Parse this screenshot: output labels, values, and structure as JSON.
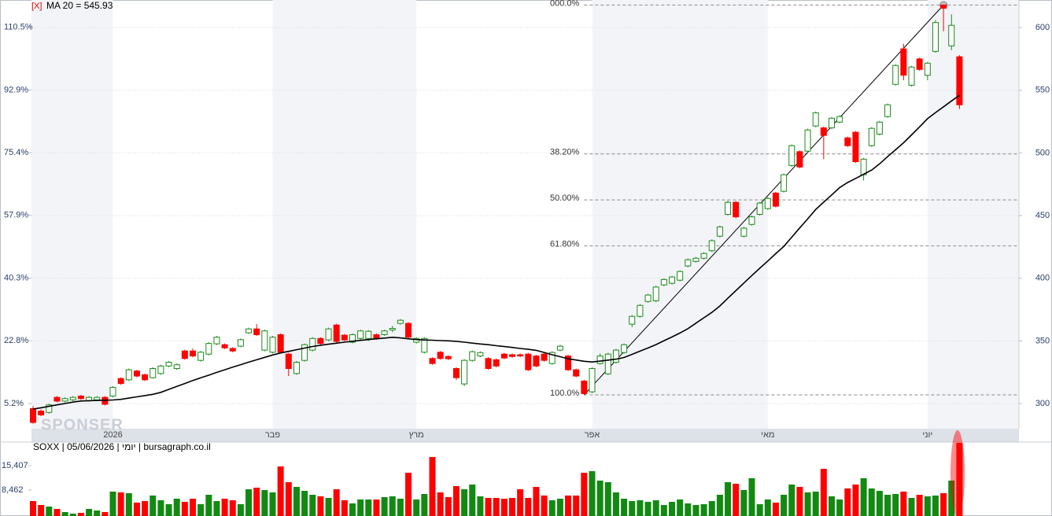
{
  "chart_data": [
    {
      "type": "candlestick",
      "close_button": "[X]",
      "watermark": "SPONSER",
      "categories": [
        null,
        null,
        null,
        null,
        null,
        null,
        null,
        null,
        null,
        null,
        "2026",
        null,
        null,
        null,
        null,
        null,
        null,
        null,
        null,
        null,
        null,
        null,
        null,
        null,
        null,
        null,
        null,
        null,
        null,
        null,
        "פבר",
        null,
        null,
        null,
        null,
        null,
        null,
        null,
        null,
        null,
        null,
        null,
        null,
        null,
        null,
        null,
        null,
        null,
        "מרץ",
        null,
        null,
        null,
        null,
        null,
        null,
        null,
        null,
        null,
        null,
        null,
        null,
        null,
        null,
        null,
        null,
        null,
        null,
        null,
        null,
        null,
        "אפר",
        null,
        null,
        null,
        null,
        null,
        null,
        null,
        null,
        null,
        null,
        null,
        null,
        null,
        null,
        null,
        null,
        null,
        null,
        null,
        null,
        null,
        "מאי",
        null,
        null,
        null,
        null,
        null,
        null,
        null,
        null,
        null,
        null,
        null,
        null,
        null,
        null,
        null,
        null,
        null,
        null,
        null,
        "יוני",
        null,
        null,
        null,
        null
      ],
      "open": [
        296,
        294,
        293,
        305,
        302,
        303,
        306,
        302.5,
        303,
        305,
        306,
        320,
        319,
        326,
        323,
        320.7,
        324,
        330,
        328,
        342,
        342,
        334.5,
        339.5,
        347.7,
        347,
        344,
        345.8,
        356.5,
        359.6,
        342.7,
        341,
        355,
        339.5,
        324,
        334.5,
        342.7,
        352,
        350.8,
        362.7,
        354.6,
        349,
        352,
        352,
        355,
        355,
        358.8,
        364,
        364,
        349,
        341,
        336,
        341,
        337.6,
        328,
        315.7,
        334.5,
        338,
        336,
        335,
        339.5,
        339,
        339,
        339.5,
        338,
        339.5,
        332,
        342.7,
        338,
        327,
        318,
        309.4,
        332,
        323.8,
        333,
        340.8,
        363.4,
        369.6,
        381.5,
        382,
        394.7,
        396,
        398.5,
        409.8,
        413.5,
        416,
        422,
        433.6,
        451,
        460.6,
        433.6,
        443,
        451,
        455.6,
        468,
        469.4,
        490,
        501,
        501.4,
        521.5,
        520,
        520,
        524.6,
        512,
        516.5,
        482.6,
        505.8,
        515,
        529,
        554.7,
        583,
        554,
        575,
        562,
        581,
        618,
        585.4,
        576.7
      ],
      "high": [
        298,
        295.5,
        300,
        306,
        305,
        306,
        307,
        306,
        306,
        306,
        314,
        321,
        328,
        327,
        324,
        329,
        331,
        334,
        332,
        343,
        344,
        342,
        349,
        354,
        348,
        345,
        352,
        360.6,
        363.4,
        359,
        354,
        356,
        340.5,
        334,
        348,
        353,
        353,
        360.6,
        363.7,
        355.6,
        356,
        359,
        358.7,
        356,
        359,
        362,
        367.5,
        365,
        353,
        353,
        337,
        342,
        338.6,
        329,
        335.5,
        342.4,
        341.7,
        337,
        336,
        340.5,
        340,
        340,
        340.5,
        339,
        340.5,
        341.8,
        347,
        339,
        328,
        319,
        329,
        340,
        340.5,
        343.7,
        348,
        370.6,
        379.4,
        387.6,
        394,
        400,
        402,
        406.4,
        415.8,
        417,
        420.8,
        431,
        442,
        462,
        461.6,
        441,
        450,
        461,
        464.7,
        469,
        483.6,
        506.8,
        502,
        519.3,
        533,
        521,
        528.7,
        530,
        513,
        517.5,
        496,
        520.6,
        525.6,
        539.4,
        570.8,
        587,
        569.5,
        576,
        572.6,
        606,
        618,
        610.5,
        578
      ],
      "low": [
        284,
        290,
        292,
        301,
        301,
        302,
        303,
        301.5,
        302,
        298.5,
        305,
        315,
        318,
        321,
        318,
        320,
        323,
        329,
        327,
        335,
        337,
        333.5,
        338.5,
        346.7,
        343.5,
        341,
        345,
        355.5,
        354,
        341.7,
        340,
        340,
        322,
        323,
        333.5,
        341.7,
        347,
        349.8,
        348.6,
        349.8,
        348,
        351,
        350,
        351,
        354,
        357,
        363,
        352,
        348,
        340,
        331,
        335,
        334.8,
        319,
        314,
        333.5,
        337,
        327,
        329,
        335.4,
        336.6,
        337,
        326,
        329,
        333.5,
        331,
        341.7,
        326,
        321,
        307,
        308.4,
        331,
        322.8,
        332,
        339.8,
        361,
        368.6,
        380.5,
        381,
        393.7,
        395,
        397.5,
        408.8,
        412.5,
        415,
        421,
        432.6,
        450,
        448,
        432.6,
        442,
        450,
        454.6,
        456.5,
        468.4,
        489,
        487.8,
        500.4,
        520.5,
        495,
        519,
        523.6,
        504.8,
        492,
        478,
        504.8,
        514,
        528,
        553.7,
        558,
        553,
        565.6,
        558,
        580,
        597,
        582,
        535
      ],
      "close": [
        285,
        291,
        299,
        302,
        304,
        305,
        304,
        305,
        305,
        299.5,
        313,
        316,
        327,
        322,
        319,
        328,
        330,
        333,
        331,
        336,
        338,
        341,
        348,
        353,
        344.5,
        342,
        351,
        359.6,
        355,
        358,
        353,
        341,
        328,
        333,
        347,
        352,
        348,
        359.6,
        349.6,
        350.8,
        355,
        358,
        357.7,
        352,
        358,
        360,
        366.5,
        353,
        352,
        352,
        332,
        336,
        335.8,
        320.7,
        334.5,
        341.4,
        340.7,
        328,
        330,
        336.4,
        337.6,
        338,
        327,
        330,
        334.5,
        340.8,
        345.8,
        327,
        322,
        308,
        328,
        338,
        339.5,
        342.7,
        347,
        369.6,
        378.4,
        386.6,
        393,
        399,
        401,
        405.4,
        414.8,
        416,
        419.8,
        430,
        441,
        460.6,
        449,
        440,
        449,
        460,
        463.7,
        457.5,
        482.6,
        505.8,
        488.8,
        518.3,
        532,
        514,
        527.7,
        529,
        505.8,
        493,
        495,
        519.6,
        524.6,
        538.4,
        569.8,
        562,
        568.5,
        566.6,
        571.6,
        604,
        615.5,
        601.8,
        538.4
      ],
      "up_color": "#1a8a1a",
      "down_color": "#ff0000",
      "series": [
        {
          "name": "MA 20 = 545.93",
          "color": "#000000",
          "values": [
            295.6,
            296.7,
            297.8,
            299.0,
            300.1,
            301.2,
            302.1,
            302.3,
            302.5,
            302.7,
            302.9,
            303.4,
            304.4,
            305.4,
            306.4,
            307.4,
            309.0,
            311.4,
            313.7,
            316.0,
            318.4,
            320.6,
            322.7,
            324.9,
            327.0,
            329.1,
            331.1,
            333.1,
            335.0,
            336.9,
            338.8,
            340.4,
            341.7,
            343.0,
            344.3,
            345.6,
            346.6,
            347.4,
            348.2,
            349.0,
            349.8,
            350.5,
            351.1,
            351.7,
            352.3,
            352.9,
            352.4,
            351.7,
            351.1,
            350.8,
            350.6,
            350.3,
            350.1,
            349.7,
            349.0,
            348.3,
            347.6,
            347.0,
            346.2,
            345.5,
            344.8,
            344.0,
            343.3,
            342.5,
            340.8,
            339.0,
            337.4,
            335.8,
            334.8,
            333.8,
            333.2,
            333.9,
            334.7,
            335.5,
            336.8,
            339.3,
            341.9,
            344.4,
            347.1,
            350.2,
            353.2,
            356.3,
            359.8,
            364.2,
            368.5,
            372.8,
            377.9,
            384.1,
            390.1,
            396.2,
            402.2,
            408.0,
            413.8,
            419.7,
            425.4,
            432.8,
            440.2,
            447.5,
            454.9,
            460.7,
            466.5,
            472.4,
            476.4,
            479.7,
            483.0,
            486.3,
            491.3,
            497.0,
            502.5,
            508.1,
            514.4,
            520.8,
            527.3,
            532.2,
            536.8,
            541.5,
            545.93
          ]
        }
      ],
      "fibonacci": {
        "color": "#8a8a8a",
        "levels": [
          {
            "value": 618,
            "label": "000.0%"
          },
          {
            "value": 499.2,
            "label": "38.20%"
          },
          {
            "value": 462.5,
            "label": "50.00%"
          },
          {
            "value": 425.8,
            "label": "61.80%"
          },
          {
            "value": 307,
            "label": "100.0%"
          }
        ]
      },
      "ylim": [
        280,
        622
      ],
      "yticks": [
        300,
        350,
        400,
        450,
        500,
        550,
        600
      ],
      "y2lim": [
        -1.8,
        118.1
      ],
      "y2ticks": [
        {
          "value": 5.2,
          "label": "5.2%"
        },
        {
          "value": 22.8,
          "label": "22.8%"
        },
        {
          "value": 40.3,
          "label": "40.3%"
        },
        {
          "value": 57.9,
          "label": "57.9%"
        },
        {
          "value": 75.4,
          "label": "75.4%"
        },
        {
          "value": 92.9,
          "label": "92.9%"
        },
        {
          "value": 110.5,
          "label": "110.5%"
        }
      ],
      "grid": true
    },
    {
      "type": "bar",
      "title": "SOXX | 05/06/2026 | יומי | bursagraph.co.il",
      "values": [
        5325,
        4205,
        3757,
        3085,
        2189,
        1741,
        1965,
        3085,
        2637,
        2189,
        8013,
        7789,
        7565,
        4877,
        5325,
        6893,
        5549,
        4429,
        5997,
        5101,
        5997,
        4429,
        7117,
        5325,
        5997,
        5549,
        4429,
        8685,
        9133,
        8461,
        7789,
        15181,
        10701,
        9357,
        8237,
        7117,
        6669,
        6221,
        8685,
        5549,
        4653,
        5773,
        5773,
        5773,
        6445,
        6669,
        5997,
        13389,
        5773,
        7341,
        17869,
        7789,
        6445,
        9581,
        8685,
        10029,
        6669,
        6221,
        6221,
        5997,
        6221,
        8685,
        6221,
        9357,
        6893,
        5549,
        5997,
        6893,
        6893,
        13389,
        13837,
        11149,
        10701,
        7789,
        5997,
        5325,
        5549,
        5101,
        5549,
        4205,
        5101,
        5773,
        4653,
        4205,
        4429,
        5325,
        7117,
        10701,
        10253,
        8461,
        11821,
        4429,
        5773,
        4877,
        7117,
        10029,
        9357,
        7789,
        8013,
        14509,
        6669,
        5773,
        8909,
        10029,
        11821,
        8909,
        8237,
        7117,
        7341,
        8013,
        6221,
        7117,
        6669,
        6893,
        7565,
        11149,
        21901
      ],
      "ylim": [
        1069,
        22573
      ],
      "yticks": [
        {
          "value": 15407,
          "label": "15,407"
        },
        {
          "value": 8462,
          "label": "8,462"
        }
      ]
    }
  ]
}
